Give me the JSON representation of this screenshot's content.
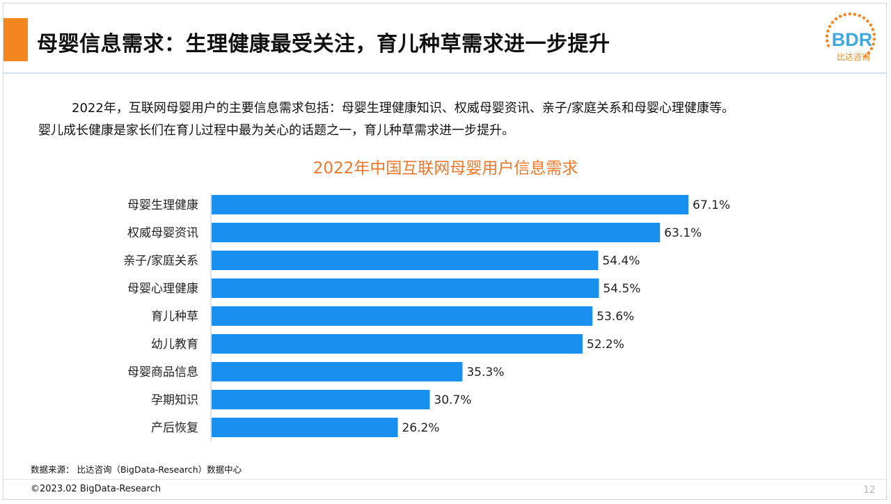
{
  "slide": {
    "title": "母婴信息需求：生理健康最受关注，育儿种草需求进一步提升",
    "intro_line1": "2022年，互联网母婴用户的主要信息需求包括：母婴生理健康知识、权威母婴资讯、亲子/家庭关系和母婴心理健康等。",
    "intro_line2": "婴儿成长健康是家长们在育儿过程中最为关心的话题之一，育儿种草需求进一步提升。",
    "source": "数据来源： 比达咨询（BigData-Research）数据中心",
    "copyright": "©2023.02 BigData-Research",
    "page_number": "12"
  },
  "logo": {
    "text": "BDR",
    "subtext": "比达咨询",
    "color": "#f4861f",
    "text_color": "#3fa9e0"
  },
  "colors": {
    "accent": "#f4861f",
    "bar": "#1890f0",
    "chart_title": "#f0762a"
  },
  "chart_data": {
    "type": "bar",
    "orientation": "horizontal",
    "title": "2022年中国互联网母婴用户信息需求",
    "xlabel": "",
    "ylabel": "",
    "unit": "%",
    "categories": [
      "母婴生理健康",
      "权威母婴资讯",
      "亲子/家庭关系",
      "母婴心理健康",
      "育儿种草",
      "幼儿教育",
      "母婴商品信息",
      "孕期知识",
      "产后恢复"
    ],
    "values": [
      67.1,
      63.1,
      54.4,
      54.5,
      53.6,
      52.2,
      35.3,
      30.7,
      26.2
    ],
    "labels": [
      "67.1%",
      "63.1%",
      "54.4%",
      "54.5%",
      "53.6%",
      "52.2%",
      "35.3%",
      "30.7%",
      "26.2%"
    ],
    "xlim": [
      0,
      67.1
    ],
    "grid": false,
    "legend": "none"
  }
}
